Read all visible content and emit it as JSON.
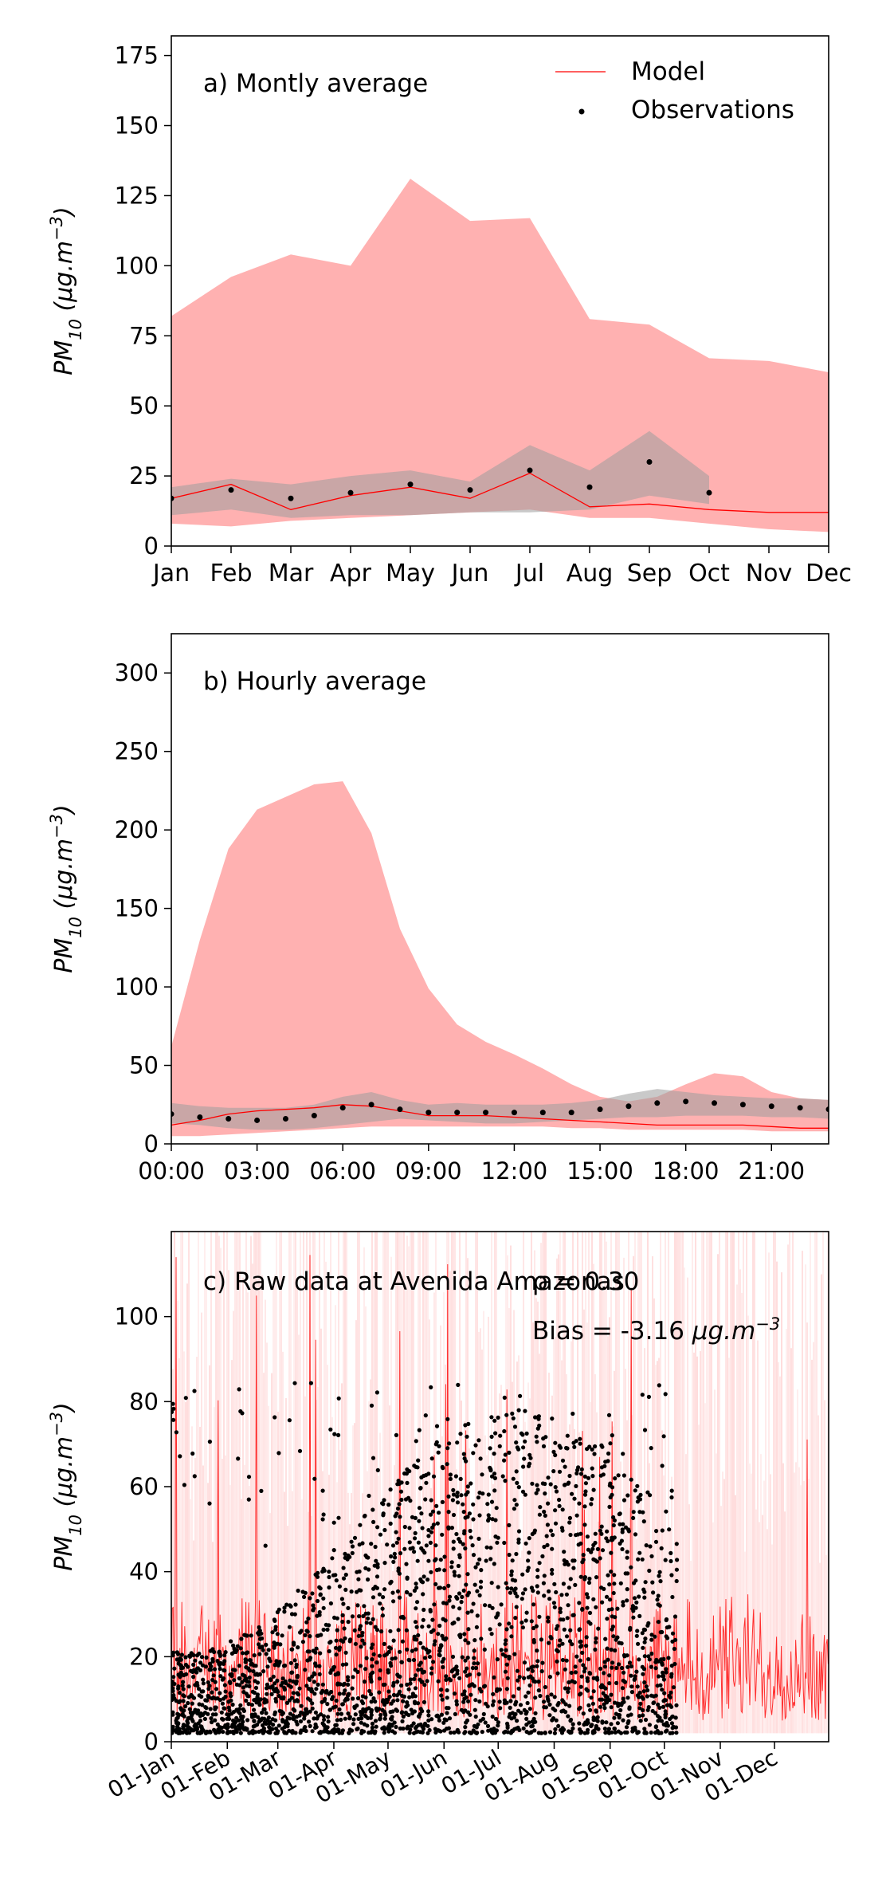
{
  "chart_data": [
    {
      "type": "area",
      "title": "a) Montly average",
      "xlabel": "",
      "ylabel_main": "PM",
      "ylabel_sub": "10",
      "ylabel_unit": " (μg.m",
      "ylabel_exp": "−3",
      "ylabel_close": ")",
      "ylim": [
        0,
        182
      ],
      "yticks": [
        0,
        25,
        50,
        75,
        100,
        125,
        150,
        175
      ],
      "categories": [
        "Jan",
        "Feb",
        "Mar",
        "Apr",
        "May",
        "Jun",
        "Jul",
        "Aug",
        "Sep",
        "Oct",
        "Nov",
        "Dec"
      ],
      "legend": {
        "position": "top-right",
        "model_label": "Model",
        "obs_label": "Observations"
      },
      "model_band": {
        "upper": [
          82,
          96,
          104,
          100,
          131,
          116,
          117,
          81,
          79,
          67,
          66,
          62
        ],
        "lower": [
          8,
          7,
          9,
          10,
          11,
          12,
          13,
          10,
          10,
          8,
          6,
          5
        ]
      },
      "obs_band": {
        "upper": [
          21,
          24,
          22,
          25,
          27,
          23,
          36,
          27,
          41,
          25,
          null,
          null
        ],
        "lower": [
          11,
          13,
          10,
          11,
          11,
          12,
          12,
          13,
          18,
          15,
          null,
          null
        ]
      },
      "series": [
        {
          "name": "Model",
          "values": [
            17,
            22,
            13,
            18,
            21,
            17,
            26,
            14,
            15,
            13,
            12,
            12
          ]
        },
        {
          "name": "Observations",
          "values": [
            17,
            20,
            17,
            19,
            22,
            20,
            27,
            21,
            30,
            19,
            null,
            null
          ]
        }
      ]
    },
    {
      "type": "area",
      "title": "b) Hourly average",
      "xlabel": "",
      "ylabel_main": "PM",
      "ylabel_sub": "10",
      "ylabel_unit": " (μg.m",
      "ylabel_exp": "−3",
      "ylabel_close": ")",
      "ylim": [
        0,
        325
      ],
      "yticks": [
        0,
        50,
        100,
        150,
        200,
        250,
        300
      ],
      "xlim": [
        0,
        23
      ],
      "xticks": [
        0,
        3,
        6,
        9,
        12,
        15,
        18,
        21
      ],
      "xtick_labels": [
        "00:00",
        "03:00",
        "06:00",
        "09:00",
        "12:00",
        "15:00",
        "18:00",
        "21:00"
      ],
      "x": [
        0,
        1,
        2,
        3,
        4,
        5,
        6,
        7,
        8,
        9,
        10,
        11,
        12,
        13,
        14,
        15,
        16,
        17,
        18,
        19,
        20,
        21,
        22,
        23
      ],
      "model_band": {
        "upper": [
          62,
          130,
          188,
          213,
          221,
          229,
          231,
          198,
          137,
          99,
          76,
          65,
          57,
          48,
          38,
          30,
          27,
          30,
          38,
          45,
          43,
          33,
          29,
          28
        ],
        "lower": [
          5,
          5,
          6,
          7,
          8,
          9,
          10,
          11,
          11,
          11,
          11,
          11,
          11,
          11,
          10,
          10,
          9,
          9,
          9,
          9,
          9,
          8,
          8,
          8
        ]
      },
      "obs_band": {
        "upper": [
          26,
          24,
          23,
          23,
          23,
          25,
          30,
          33,
          28,
          25,
          26,
          25,
          25,
          25,
          26,
          28,
          32,
          35,
          33,
          31,
          30,
          29,
          29,
          28
        ],
        "lower": [
          13,
          12,
          10,
          9,
          9,
          10,
          12,
          14,
          16,
          15,
          14,
          13,
          13,
          14,
          15,
          16,
          17,
          17,
          18,
          18,
          18,
          17,
          17,
          16
        ]
      },
      "series": [
        {
          "name": "Model",
          "values": [
            12,
            15,
            19,
            21,
            22,
            23,
            25,
            24,
            21,
            18,
            18,
            18,
            17,
            16,
            15,
            14,
            13,
            12,
            12,
            12,
            12,
            11,
            10,
            10
          ]
        },
        {
          "name": "Observations",
          "values": [
            19,
            17,
            16,
            15,
            16,
            18,
            23,
            25,
            22,
            20,
            20,
            20,
            20,
            20,
            20,
            22,
            24,
            26,
            27,
            26,
            25,
            24,
            23,
            22
          ]
        }
      ]
    },
    {
      "type": "line",
      "title": "c) Raw data at Avenida Amazonas",
      "correlation_label": "ρ = 0.30",
      "bias_label": "Bias = -3.16 ",
      "bias_unit": "μg.m",
      "bias_exp": "−3",
      "xlabel": "",
      "ylabel_main": "PM",
      "ylabel_sub": "10",
      "ylabel_unit": " (μg.m",
      "ylabel_exp": "−3",
      "ylabel_close": ")",
      "ylim": [
        0,
        120
      ],
      "yticks": [
        0,
        20,
        40,
        60,
        80,
        100
      ],
      "xlim": [
        "2019-01-01",
        "2019-12-31"
      ],
      "xtick_labels": [
        "01-Jan",
        "01-Feb",
        "01-Mar",
        "01-Apr",
        "01-May",
        "01-Jun",
        "01-Jul",
        "01-Aug",
        "01-Sep",
        "01-Oct",
        "01-Nov",
        "01-Dec"
      ],
      "xtick_days": [
        0,
        31,
        59,
        90,
        120,
        151,
        181,
        212,
        243,
        273,
        304,
        334
      ],
      "observations_end_day": 280,
      "model_typical_range": [
        5,
        35
      ],
      "observations_typical_range": [
        2,
        50
      ],
      "observations_max": 85,
      "series": [
        {
          "name": "Model"
        },
        {
          "name": "Observations"
        }
      ]
    }
  ]
}
